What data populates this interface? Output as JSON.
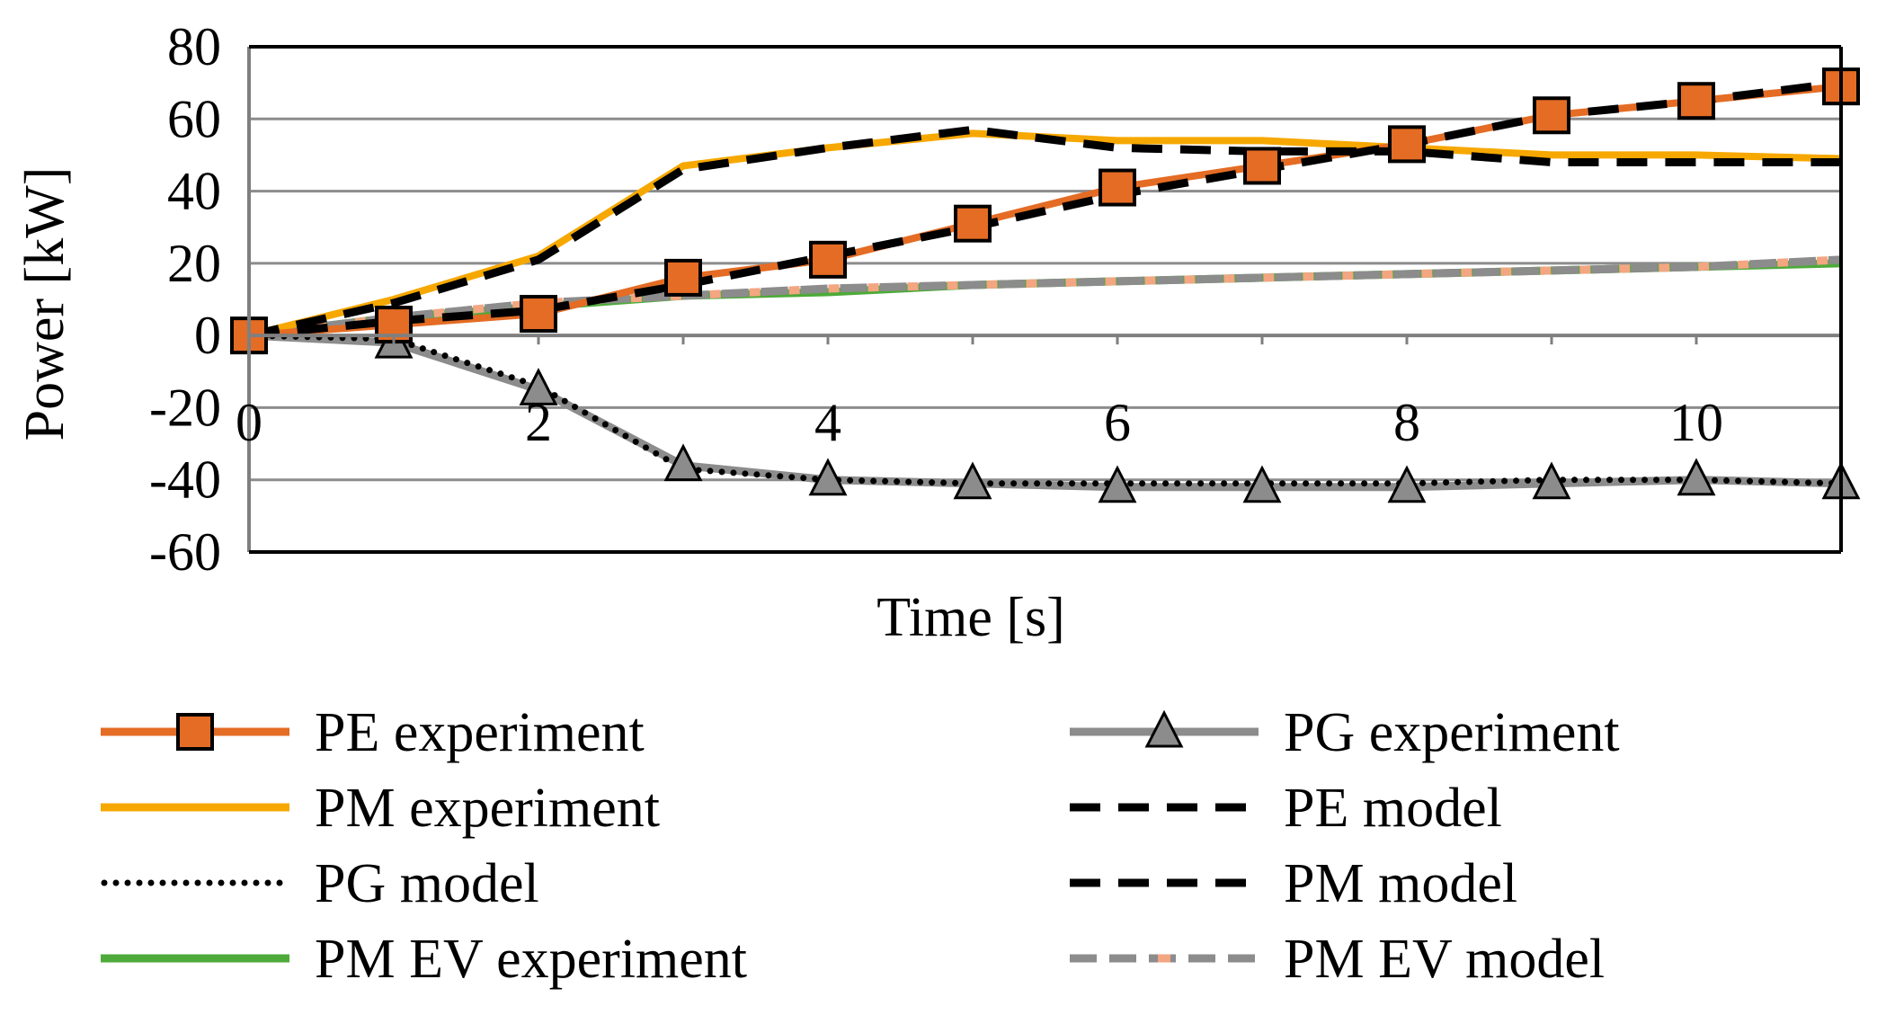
{
  "chart_data": {
    "type": "line",
    "title": "",
    "xlabel": "Time [s]",
    "ylabel": "Power [kW]",
    "xlim": [
      0,
      11
    ],
    "ylim": [
      -60,
      80
    ],
    "xticks": [
      0,
      2,
      4,
      6,
      8,
      10
    ],
    "xtick_labels": [
      "0",
      "2",
      "4",
      "6",
      "8",
      "10"
    ],
    "yticks": [
      80,
      60,
      40,
      20,
      0,
      -20,
      -40,
      -60
    ],
    "ytick_labels": [
      "80",
      "60",
      "40",
      "20",
      "0",
      "-20",
      "-40",
      "-60"
    ],
    "grid": "horizontal",
    "legend_position": "bottom",
    "series": [
      {
        "id": "pe-exp",
        "name": "PE experiment",
        "color": "#E46C24",
        "style": "solid",
        "marker": "square",
        "x": [
          0,
          1,
          2,
          3,
          4,
          5,
          6,
          7,
          8,
          9,
          10,
          11
        ],
        "y": [
          0,
          3,
          6,
          16,
          21,
          31,
          41,
          47,
          53,
          61,
          65,
          69
        ]
      },
      {
        "id": "pg-exp",
        "name": "PG experiment",
        "color": "#8C8C8C",
        "style": "solid",
        "marker": "triangle",
        "x": [
          0,
          1,
          2,
          3,
          4,
          5,
          6,
          7,
          8,
          9,
          10,
          11
        ],
        "y": [
          0,
          -2,
          -15,
          -36,
          -40,
          -41,
          -42,
          -42,
          -42,
          -41,
          -40,
          -41
        ]
      },
      {
        "id": "pm-exp",
        "name": "PM experiment",
        "color": "#F6A800",
        "style": "solid",
        "marker": "none",
        "x": [
          0,
          1,
          2,
          3,
          4,
          5,
          6,
          7,
          8,
          9,
          10,
          11
        ],
        "y": [
          0,
          10,
          22,
          47,
          52,
          56,
          54,
          54,
          52,
          50,
          50,
          49
        ]
      },
      {
        "id": "pe-model",
        "name": "PE model",
        "color": "#000000",
        "style": "dashed",
        "marker": "none",
        "x": [
          0,
          1,
          2,
          3,
          4,
          5,
          6,
          7,
          8,
          9,
          10,
          11
        ],
        "y": [
          0,
          4,
          7,
          14,
          22,
          30,
          39,
          46,
          53,
          61,
          65,
          70
        ]
      },
      {
        "id": "pg-model",
        "name": "PG model",
        "color": "#000000",
        "style": "dotted",
        "marker": "none",
        "x": [
          0,
          1,
          2,
          3,
          4,
          5,
          6,
          7,
          8,
          9,
          10,
          11
        ],
        "y": [
          0,
          -1,
          -14,
          -37,
          -40,
          -41,
          -41,
          -41,
          -41,
          -40,
          -40,
          -41
        ]
      },
      {
        "id": "pm-model",
        "name": "PM model",
        "color": "#000000",
        "style": "dashed",
        "marker": "none",
        "x": [
          0,
          1,
          2,
          3,
          4,
          5,
          6,
          7,
          8,
          9,
          10,
          11
        ],
        "y": [
          0,
          9,
          21,
          46,
          52,
          57,
          52,
          51,
          51,
          48,
          48,
          48
        ]
      },
      {
        "id": "pm-ev-exp",
        "name": "PM EV experiment",
        "color": "#4EAA3A",
        "style": "solid",
        "marker": "none",
        "x": [
          0,
          1,
          2,
          3,
          4,
          5,
          6,
          7,
          8,
          9,
          10,
          11
        ],
        "y": [
          0,
          5,
          8,
          11,
          12,
          14,
          15,
          16,
          17,
          18,
          19,
          20
        ]
      },
      {
        "id": "pm-ev-model",
        "name": "PM EV model",
        "color": "#8C8C8C",
        "dash_color": "#F4A582",
        "style": "dash-dot-mixed",
        "marker": "none",
        "x": [
          0,
          1,
          2,
          3,
          4,
          5,
          6,
          7,
          8,
          9,
          10,
          11
        ],
        "y": [
          0,
          5,
          9,
          11,
          13,
          14,
          15,
          16,
          17,
          18,
          19,
          21
        ]
      }
    ]
  }
}
